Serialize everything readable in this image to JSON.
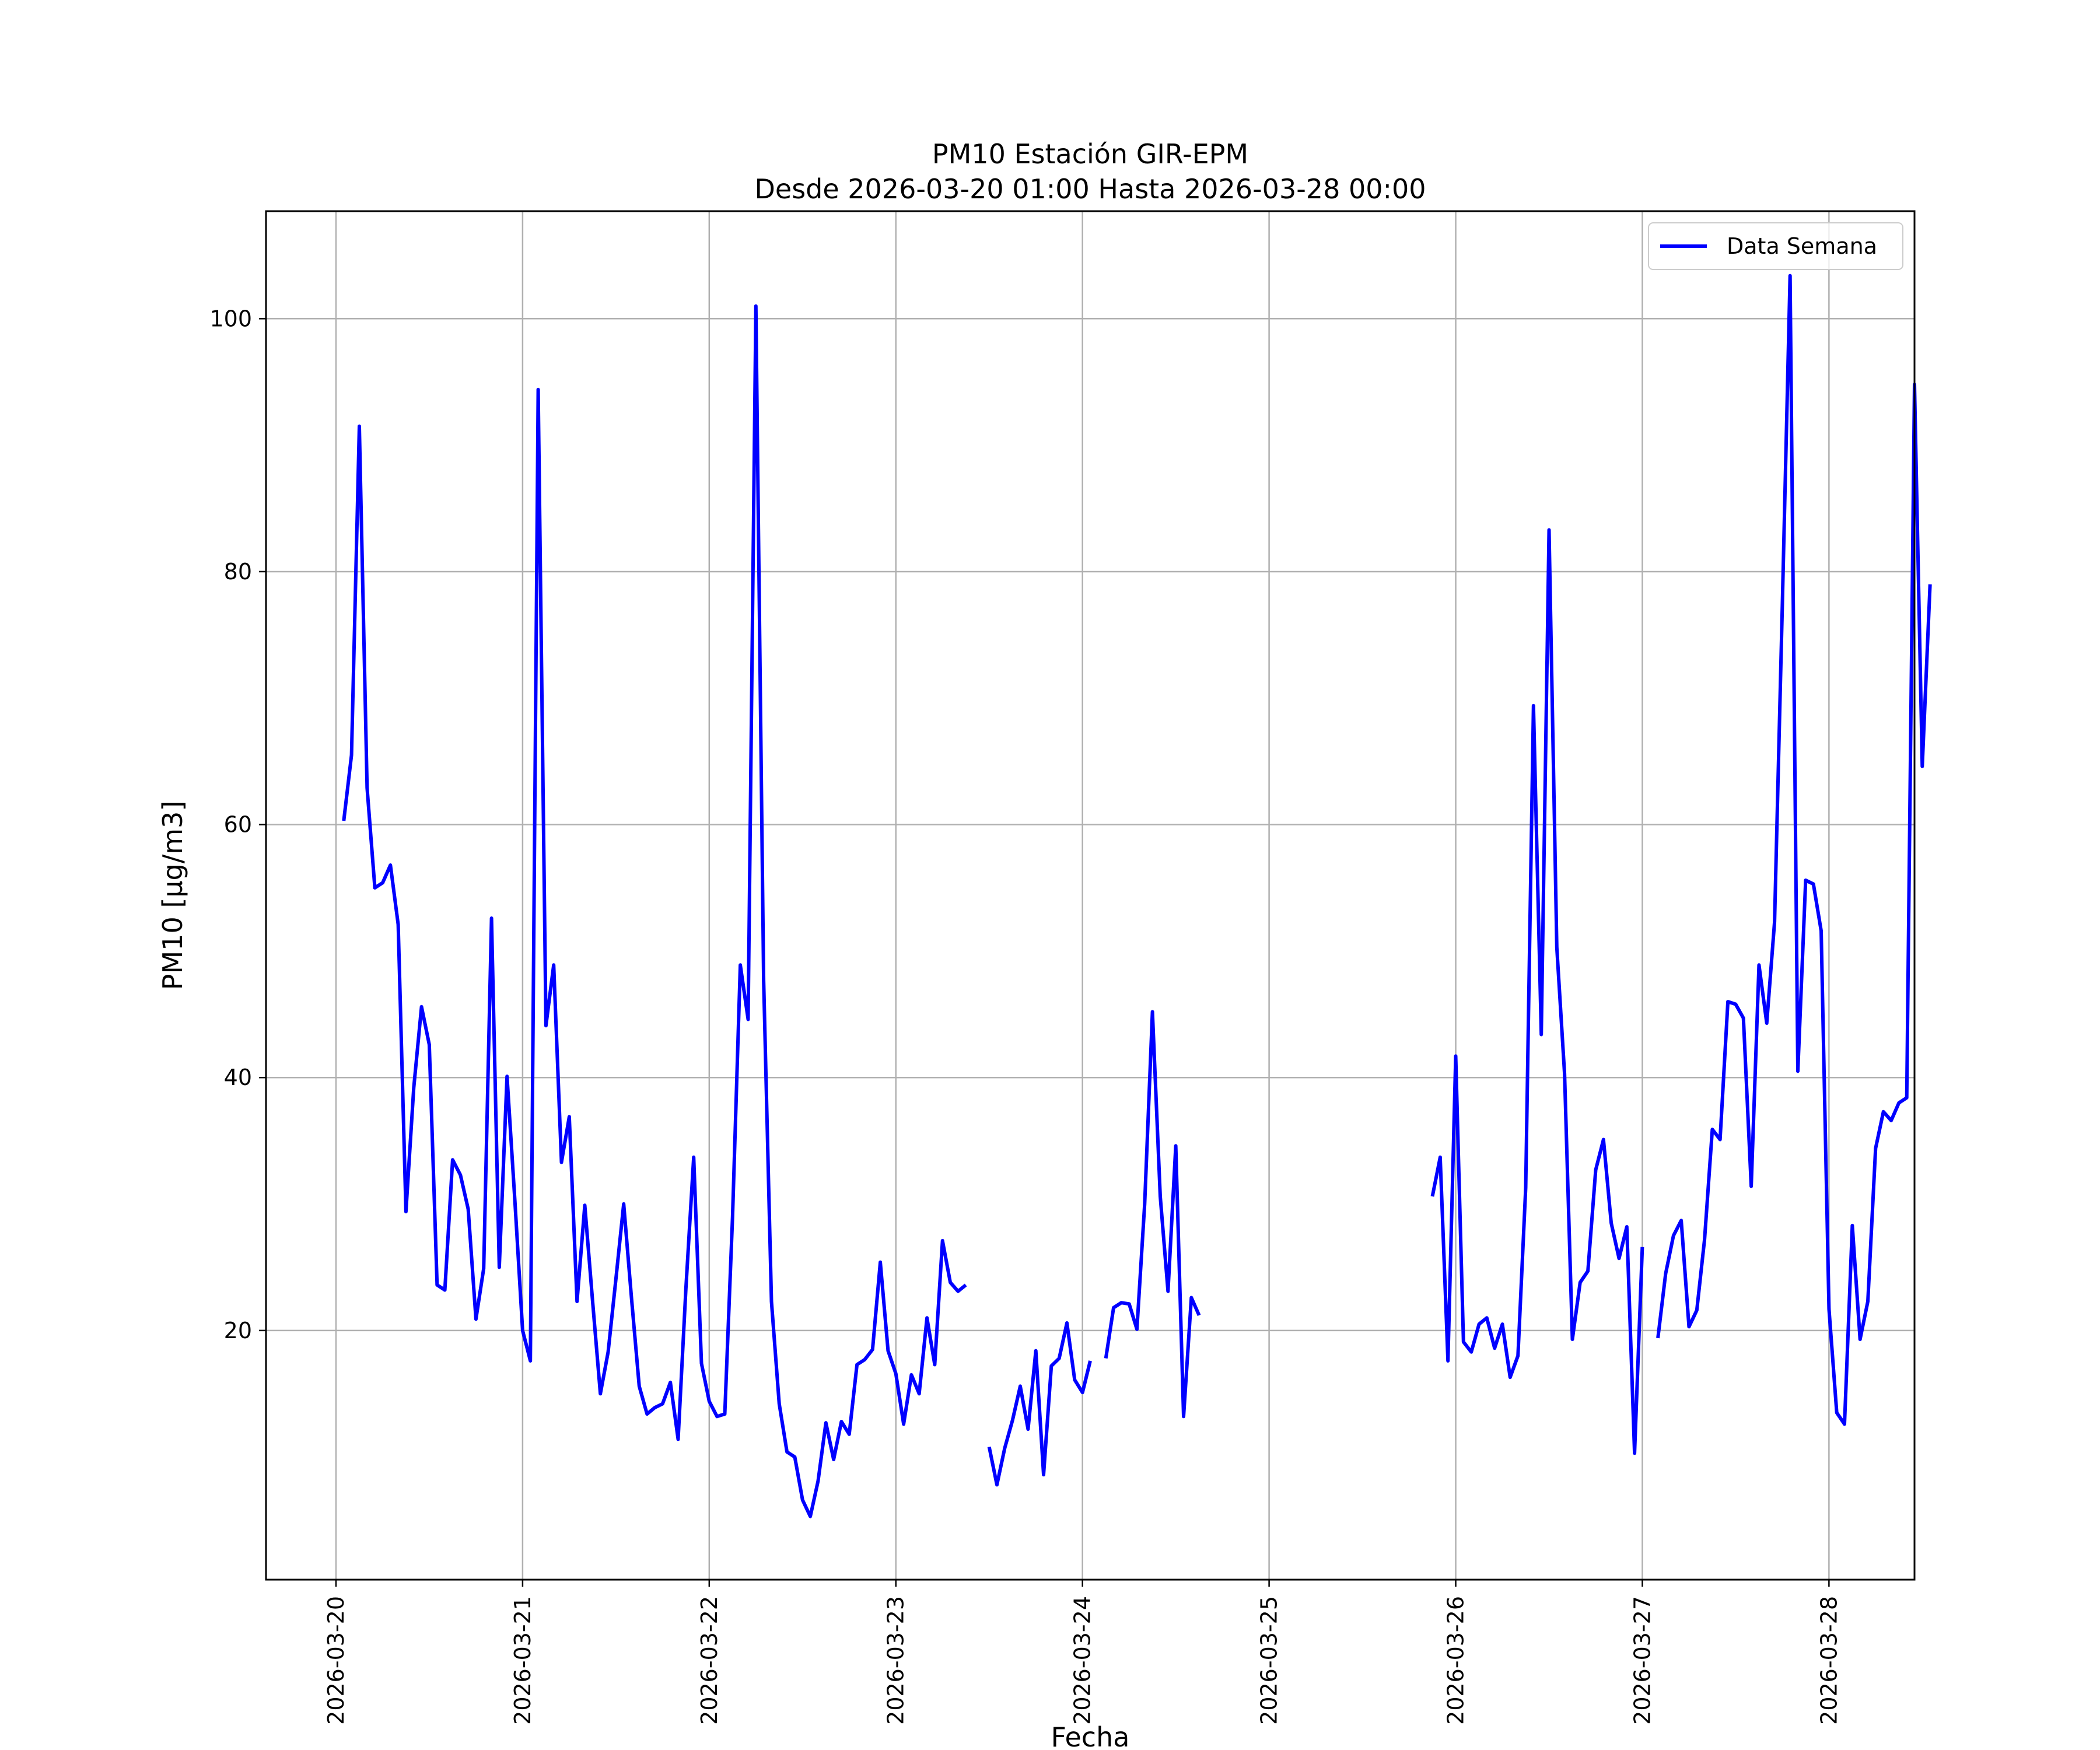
{
  "chart_data": {
    "type": "line",
    "title_line1": "PM10 Estación GIR-EPM",
    "title_line2": "Desde 2026-03-20 01:00 Hasta 2026-03-28 00:00",
    "xlabel": "Fecha",
    "ylabel": "PM10 [μg/m3]",
    "x_ticks": [
      "2026-03-20",
      "2026-03-21",
      "2026-03-22",
      "2026-03-23",
      "2026-03-24",
      "2026-03-25",
      "2026-03-26",
      "2026-03-27",
      "2026-03-28"
    ],
    "y_ticks": [
      20,
      40,
      60,
      80,
      100
    ],
    "ylim": [
      0.3,
      108.5
    ],
    "xlim": [
      "2026-03-19 15:00",
      "2026-03-28 11:00"
    ],
    "grid": true,
    "legend_position": "top-right",
    "colors": {
      "series": "#0000ff",
      "grid": "#b0b0b0"
    },
    "series": [
      {
        "name": "Data Semana",
        "start": "2026-03-20 01:00",
        "interval_hours": 1,
        "values": [
          60.3,
          65.5,
          91.5,
          62.9,
          55.0,
          55.4,
          56.8,
          52.1,
          29.4,
          39.2,
          45.6,
          42.6,
          23.6,
          23.2,
          33.5,
          32.3,
          29.6,
          20.9,
          24.9,
          52.6,
          25.0,
          40.1,
          30.3,
          20.0,
          17.6,
          94.4,
          44.1,
          48.9,
          33.3,
          36.9,
          22.3,
          29.9,
          22.3,
          15.0,
          18.3,
          24.1,
          30.0,
          22.6,
          15.6,
          13.4,
          13.9,
          14.2,
          15.9,
          11.4,
          23.3,
          33.7,
          17.4,
          14.4,
          13.2,
          13.4,
          29.0,
          48.9,
          44.6,
          101.0,
          47.7,
          22.3,
          14.2,
          10.4,
          10.0,
          6.6,
          5.3,
          8.1,
          12.7,
          9.8,
          12.8,
          11.8,
          17.3,
          17.7,
          18.5,
          25.4,
          18.4,
          16.6,
          12.6,
          16.5,
          15.0,
          21.0,
          17.3,
          27.1,
          23.8,
          23.1,
          23.6,
          null,
          null,
          10.8,
          7.8,
          10.7,
          12.9,
          15.6,
          12.2,
          18.4,
          8.6,
          17.2,
          17.8,
          20.6,
          16.1,
          15.1,
          17.6,
          null,
          17.8,
          21.8,
          22.2,
          22.1,
          20.1,
          30.0,
          45.2,
          30.6,
          23.1,
          34.6,
          13.2,
          22.6,
          21.2,
          null,
          null,
          null,
          null,
          null,
          null,
          null,
          null,
          null,
          null,
          null,
          null,
          null,
          null,
          null,
          null,
          null,
          null,
          null,
          null,
          null,
          null,
          null,
          null,
          null,
          null,
          null,
          null,
          null,
          30.6,
          33.7,
          17.6,
          41.7,
          19.1,
          18.3,
          20.5,
          21.0,
          18.6,
          20.5,
          16.3,
          18.0,
          31.3,
          69.4,
          43.4,
          83.3,
          50.3,
          40.3,
          19.3,
          23.8,
          24.7,
          32.7,
          35.1,
          28.5,
          25.7,
          28.2,
          10.3,
          26.6,
          null,
          19.4,
          24.5,
          27.5,
          28.7,
          20.3,
          21.6,
          27.2,
          35.9,
          35.1,
          46.0,
          45.8,
          44.7,
          31.4,
          48.9,
          44.3,
          52.3,
          77.3,
          103.4,
          40.5,
          55.6,
          55.3,
          51.6,
          21.7,
          13.5,
          12.6,
          28.3,
          19.3,
          22.3,
          34.4,
          37.3,
          36.6,
          38.0,
          38.4,
          94.8,
          64.6,
          79.0
        ]
      }
    ]
  }
}
